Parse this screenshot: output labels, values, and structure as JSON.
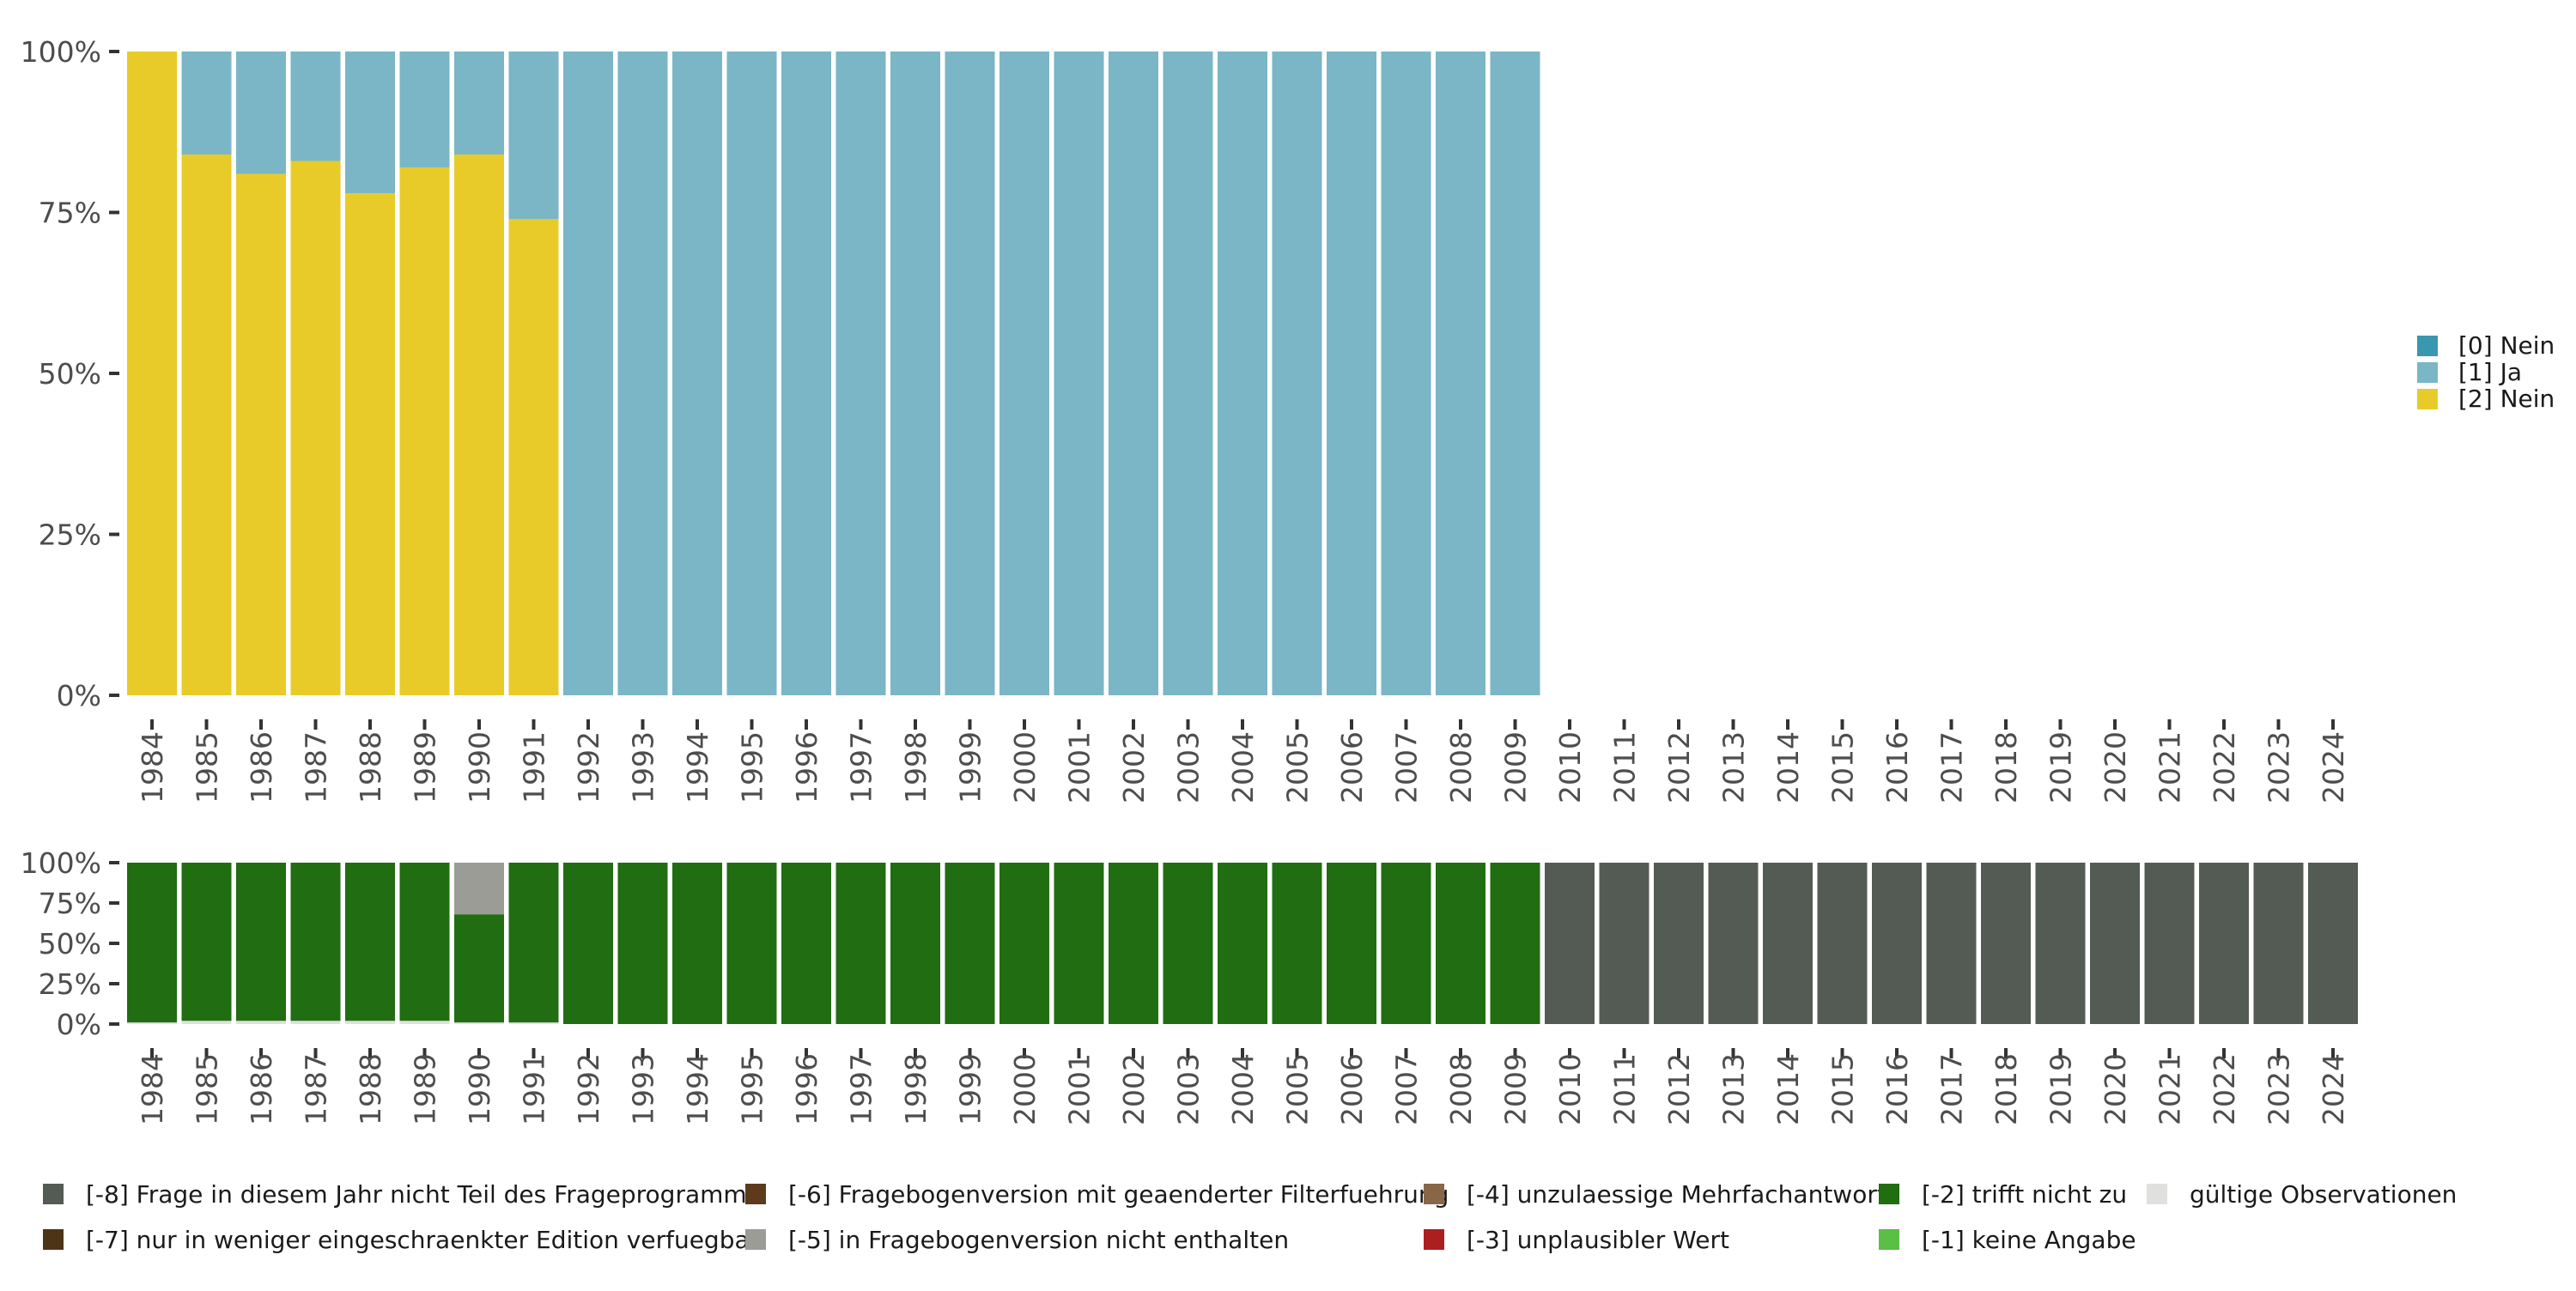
{
  "chart_data": [
    {
      "type": "bar",
      "stacked": true,
      "percent": true,
      "categories": [
        "1984",
        "1985",
        "1986",
        "1987",
        "1988",
        "1989",
        "1990",
        "1991",
        "1992",
        "1993",
        "1994",
        "1995",
        "1996",
        "1997",
        "1998",
        "1999",
        "2000",
        "2001",
        "2002",
        "2003",
        "2004",
        "2005",
        "2006",
        "2007",
        "2008",
        "2009",
        "2010",
        "2011",
        "2012",
        "2013",
        "2014",
        "2015",
        "2016",
        "2017",
        "2018",
        "2019",
        "2020",
        "2021",
        "2022",
        "2023",
        "2024"
      ],
      "y_ticks": [
        "0%",
        "25%",
        "50%",
        "75%",
        "100%"
      ],
      "ylim": [
        0,
        100
      ],
      "series": [
        {
          "name": "[2] Nein",
          "color": "#E8CB29",
          "values": [
            100,
            84,
            81,
            83,
            78,
            82,
            84,
            74,
            0,
            0,
            0,
            0,
            0,
            0,
            0,
            0,
            0,
            0,
            0,
            0,
            0,
            0,
            0,
            0,
            0,
            0,
            null,
            null,
            null,
            null,
            null,
            null,
            null,
            null,
            null,
            null,
            null,
            null,
            null,
            null,
            null
          ]
        },
        {
          "name": "[1] Ja",
          "color": "#7AB6C6",
          "values": [
            0,
            16,
            19,
            17,
            22,
            18,
            16,
            26,
            100,
            100,
            100,
            100,
            100,
            100,
            100,
            100,
            100,
            100,
            100,
            100,
            100,
            100,
            100,
            100,
            100,
            100,
            null,
            null,
            null,
            null,
            null,
            null,
            null,
            null,
            null,
            null,
            null,
            null,
            null,
            null,
            null
          ]
        },
        {
          "name": "[0] Nein",
          "color": "#3A97AF",
          "values": [
            0,
            0,
            0,
            0,
            0,
            0,
            0,
            0,
            0,
            0,
            0,
            0,
            0,
            0,
            0,
            0,
            0,
            0,
            0,
            0,
            0,
            0,
            0,
            0,
            0,
            0,
            null,
            null,
            null,
            null,
            null,
            null,
            null,
            null,
            null,
            null,
            null,
            null,
            null,
            null,
            null
          ]
        }
      ],
      "legend": {
        "position": "right",
        "items": [
          {
            "label": "[0] Nein",
            "color": "#3A97AF"
          },
          {
            "label": "[1] Ja",
            "color": "#7AB6C6"
          },
          {
            "label": "[2] Nein",
            "color": "#E8CB29"
          }
        ]
      }
    },
    {
      "type": "bar",
      "stacked": true,
      "percent": true,
      "categories": [
        "1984",
        "1985",
        "1986",
        "1987",
        "1988",
        "1989",
        "1990",
        "1991",
        "1992",
        "1993",
        "1994",
        "1995",
        "1996",
        "1997",
        "1998",
        "1999",
        "2000",
        "2001",
        "2002",
        "2003",
        "2004",
        "2005",
        "2006",
        "2007",
        "2008",
        "2009",
        "2010",
        "2011",
        "2012",
        "2013",
        "2014",
        "2015",
        "2016",
        "2017",
        "2018",
        "2019",
        "2020",
        "2021",
        "2022",
        "2023",
        "2024"
      ],
      "y_ticks": [
        "0%",
        "25%",
        "50%",
        "75%",
        "100%"
      ],
      "ylim": [
        0,
        100
      ],
      "series": [
        {
          "name": "gültige Observationen",
          "color": "#E0E0DE",
          "values": [
            1,
            2,
            2,
            2,
            2,
            2,
            1,
            1,
            0,
            0,
            0,
            0,
            0,
            0,
            0,
            0,
            0,
            0,
            0,
            0,
            0,
            0,
            0,
            0,
            0,
            0,
            0,
            0,
            0,
            0,
            0,
            0,
            0,
            0,
            0,
            0,
            0,
            0,
            0,
            0,
            0
          ]
        },
        {
          "name": "[-2] trifft nicht zu",
          "color": "#216D11",
          "values": [
            99,
            98,
            98,
            98,
            98,
            98,
            67,
            99,
            100,
            100,
            100,
            100,
            100,
            100,
            100,
            100,
            100,
            100,
            100,
            100,
            100,
            100,
            100,
            100,
            100,
            100,
            0,
            0,
            0,
            0,
            0,
            0,
            0,
            0,
            0,
            0,
            0,
            0,
            0,
            0,
            0
          ]
        },
        {
          "name": "[-5] in Fragebogenversion nicht enthalten",
          "color": "#9A9C95",
          "values": [
            0,
            0,
            0,
            0,
            0,
            0,
            32,
            0,
            0,
            0,
            0,
            0,
            0,
            0,
            0,
            0,
            0,
            0,
            0,
            0,
            0,
            0,
            0,
            0,
            0,
            0,
            0,
            0,
            0,
            0,
            0,
            0,
            0,
            0,
            0,
            0,
            0,
            0,
            0,
            0,
            0
          ]
        },
        {
          "name": "[-8] Frage in diesem Jahr nicht Teil des Frageprogramms",
          "color": "#545B55",
          "values": [
            0,
            0,
            0,
            0,
            0,
            0,
            0,
            0,
            0,
            0,
            0,
            0,
            0,
            0,
            0,
            0,
            0,
            0,
            0,
            0,
            0,
            0,
            0,
            0,
            0,
            0,
            100,
            100,
            100,
            100,
            100,
            100,
            100,
            100,
            100,
            100,
            100,
            100,
            100,
            100,
            100
          ]
        }
      ],
      "legend": {
        "position": "bottom",
        "items": [
          {
            "label": "[-8] Frage in diesem Jahr nicht Teil des Frageprogramms",
            "color": "#545B55"
          },
          {
            "label": "[-7] nur in weniger eingeschraenkter Edition verfuegbar",
            "color": "#4E3417"
          },
          {
            "label": "[-6] Fragebogenversion mit geaenderter Filterfuehrung",
            "color": "#5C3A1B"
          },
          {
            "label": "[-5] in Fragebogenversion nicht enthalten",
            "color": "#9A9C95"
          },
          {
            "label": "[-4] unzulaessige Mehrfachantwort",
            "color": "#8A6648"
          },
          {
            "label": "[-3] unplausibler Wert",
            "color": "#AC1F1F"
          },
          {
            "label": "[-2] trifft nicht zu",
            "color": "#216D11"
          },
          {
            "label": "[-1] keine Angabe",
            "color": "#5BBE45"
          },
          {
            "label": "gültige Observationen",
            "color": "#E0E0DE"
          }
        ]
      }
    }
  ]
}
